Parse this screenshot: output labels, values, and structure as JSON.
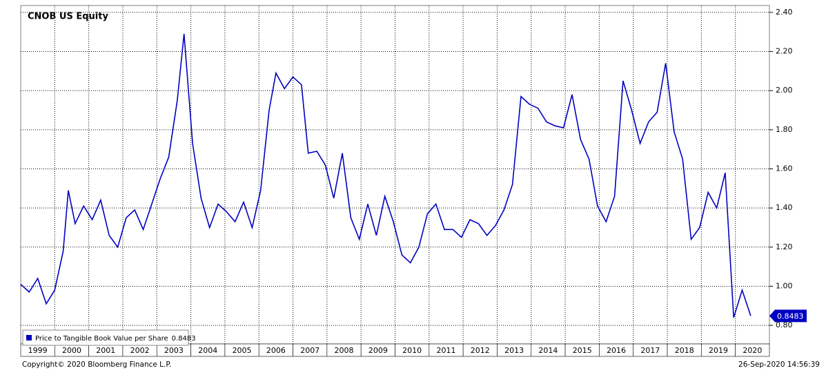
{
  "chart_data": {
    "type": "line",
    "title": "CNOB US Equity",
    "source": "Copyright© 2020 Bloomberg Finance L.P.",
    "timestamp": "26-Sep-2020 14:56:39",
    "x": [
      1999.0,
      1999.25,
      1999.5,
      1999.75,
      2000.0,
      2000.25,
      2000.4,
      2000.6,
      2000.85,
      2001.1,
      2001.35,
      2001.6,
      2001.85,
      2002.1,
      2002.35,
      2002.6,
      2002.85,
      2003.1,
      2003.35,
      2003.6,
      2003.8,
      2004.05,
      2004.3,
      2004.55,
      2004.8,
      2005.05,
      2005.3,
      2005.55,
      2005.8,
      2006.05,
      2006.3,
      2006.5,
      2006.75,
      2007.0,
      2007.25,
      2007.45,
      2007.7,
      2007.95,
      2008.2,
      2008.45,
      2008.7,
      2008.95,
      2009.2,
      2009.45,
      2009.7,
      2009.95,
      2010.2,
      2010.45,
      2010.7,
      2010.95,
      2011.2,
      2011.45,
      2011.7,
      2011.95,
      2012.2,
      2012.45,
      2012.7,
      2012.95,
      2013.2,
      2013.45,
      2013.7,
      2013.95,
      2014.2,
      2014.45,
      2014.7,
      2014.95,
      2015.2,
      2015.45,
      2015.7,
      2015.95,
      2016.2,
      2016.45,
      2016.7,
      2016.95,
      2017.2,
      2017.45,
      2017.7,
      2017.95,
      2018.2,
      2018.45,
      2018.7,
      2018.95,
      2019.2,
      2019.45,
      2019.7,
      2019.95,
      2020.2,
      2020.45
    ],
    "series": [
      {
        "name": "Price to Tangible Book Value per Share",
        "color": "#0000c0",
        "values": [
          1.01,
          0.97,
          1.04,
          0.91,
          0.98,
          1.18,
          1.49,
          1.32,
          1.41,
          1.34,
          1.44,
          1.26,
          1.2,
          1.35,
          1.39,
          1.29,
          1.42,
          1.55,
          1.66,
          1.95,
          2.29,
          1.73,
          1.45,
          1.3,
          1.42,
          1.38,
          1.33,
          1.43,
          1.3,
          1.49,
          1.9,
          2.09,
          2.01,
          2.07,
          2.03,
          1.68,
          1.69,
          1.62,
          1.45,
          1.68,
          1.35,
          1.24,
          1.42,
          1.26,
          1.46,
          1.33,
          1.16,
          1.12,
          1.2,
          1.37,
          1.42,
          1.29,
          1.29,
          1.25,
          1.34,
          1.32,
          1.26,
          1.31,
          1.39,
          1.52,
          1.97,
          1.93,
          1.91,
          1.84,
          1.82,
          1.81,
          1.98,
          1.75,
          1.65,
          1.41,
          1.33,
          1.46,
          2.05,
          1.9,
          1.73,
          1.84,
          1.89,
          2.14,
          1.79,
          1.65,
          1.24,
          1.3,
          1.48,
          1.4,
          1.58,
          0.84,
          0.98,
          0.8483
        ]
      }
    ],
    "xlim": [
      1999,
      2021
    ],
    "xticks": [
      1999,
      2000,
      2001,
      2002,
      2003,
      2004,
      2005,
      2006,
      2007,
      2008,
      2009,
      2010,
      2011,
      2012,
      2013,
      2014,
      2015,
      2016,
      2017,
      2018,
      2019,
      2020
    ],
    "ylim": [
      0.705,
      2.435
    ],
    "yticks": [
      {
        "value": 0.8,
        "label": "0.80"
      },
      {
        "value": 1.0,
        "label": "1.00"
      },
      {
        "value": 1.2,
        "label": "1.20"
      },
      {
        "value": 1.4,
        "label": "1.40"
      },
      {
        "value": 1.6,
        "label": "1.60"
      },
      {
        "value": 1.8,
        "label": "1.80"
      },
      {
        "value": 2.0,
        "label": "2.00"
      },
      {
        "value": 2.2,
        "label": "2.20"
      },
      {
        "value": 2.4,
        "label": "2.40"
      }
    ],
    "grid": true
  }
}
